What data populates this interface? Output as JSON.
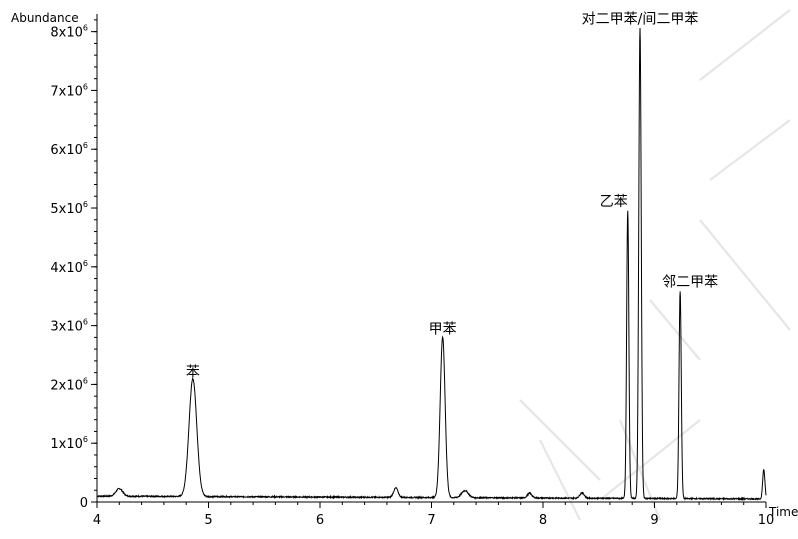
{
  "chart_data": {
    "type": "line",
    "title": "",
    "xlabel": "Time",
    "ylabel": "Abundance",
    "xlim": [
      4,
      10
    ],
    "ylim": [
      0,
      8300000
    ],
    "grid": false,
    "legend": "none",
    "x_ticks": [
      {
        "value": 4,
        "label": "4"
      },
      {
        "value": 5,
        "label": "5"
      },
      {
        "value": 6,
        "label": "6"
      },
      {
        "value": 7,
        "label": "7"
      },
      {
        "value": 8,
        "label": "8"
      },
      {
        "value": 9,
        "label": "9"
      },
      {
        "value": 10,
        "label": "10"
      }
    ],
    "y_ticks": [
      {
        "value": 0,
        "label": "0",
        "base": "0",
        "exp": ""
      },
      {
        "value": 1000000,
        "label": "1x10^6",
        "base": "1x10",
        "exp": "6"
      },
      {
        "value": 2000000,
        "label": "2x10^6",
        "base": "2x10",
        "exp": "6"
      },
      {
        "value": 3000000,
        "label": "3x10^6",
        "base": "3x10",
        "exp": "6"
      },
      {
        "value": 4000000,
        "label": "4x10^6",
        "base": "4x10",
        "exp": "6"
      },
      {
        "value": 5000000,
        "label": "5x10^6",
        "base": "5x10",
        "exp": "6"
      },
      {
        "value": 6000000,
        "label": "6x10^6",
        "base": "6x10",
        "exp": "6"
      },
      {
        "value": 7000000,
        "label": "7x10^6",
        "base": "7x10",
        "exp": "6"
      },
      {
        "value": 8000000,
        "label": "8x10^6",
        "base": "8x10",
        "exp": "6"
      }
    ],
    "baseline": 100000,
    "peaks": [
      {
        "label": "苯",
        "x": 4.86,
        "height": 2000000,
        "width": 0.035
      },
      {
        "label": "甲苯",
        "x": 7.1,
        "height": 2730000,
        "width": 0.022
      },
      {
        "label": "乙苯",
        "x": 8.76,
        "height": 4900000,
        "width": 0.01
      },
      {
        "label": "对二甲苯/间二甲苯",
        "x": 8.87,
        "height": 8000000,
        "width": 0.011
      },
      {
        "label": "邻二甲苯",
        "x": 9.23,
        "height": 3530000,
        "width": 0.01
      }
    ],
    "minor_peaks": [
      {
        "x": 4.2,
        "height": 130000,
        "width": 0.03
      },
      {
        "x": 6.68,
        "height": 160000,
        "width": 0.02
      },
      {
        "x": 7.3,
        "height": 120000,
        "width": 0.03
      },
      {
        "x": 7.88,
        "height": 80000,
        "width": 0.02
      },
      {
        "x": 8.35,
        "height": 90000,
        "width": 0.02
      },
      {
        "x": 9.98,
        "height": 500000,
        "width": 0.01
      }
    ]
  }
}
